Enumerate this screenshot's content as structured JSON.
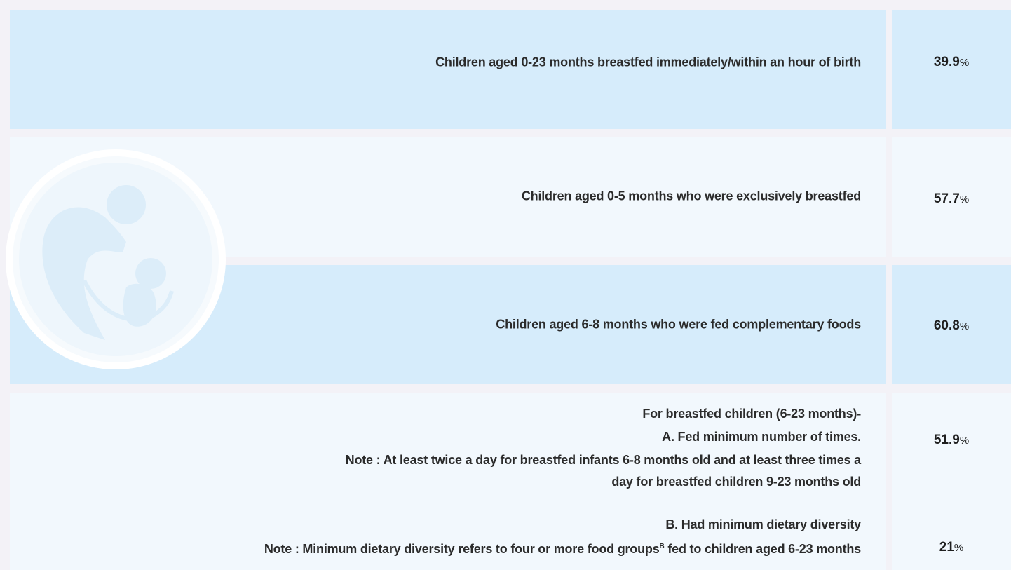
{
  "rows": [
    {
      "label": "Children aged 0-23 months breastfed immediately/within an hour of birth",
      "value": {
        "number": "39.9",
        "unit": "%"
      }
    },
    {
      "label": "Children aged 0-5 months who were exclusively breastfed",
      "value": {
        "number": "57.7",
        "unit": "%"
      }
    },
    {
      "label": "Children aged 6-8 months who were fed complementary foods",
      "value": {
        "number": "60.8",
        "unit": "%"
      }
    },
    {
      "lines": [
        "For breastfed children (6-23 months)-",
        "A. Fed minimum number of times.",
        "Note : At least twice a day  for breastfed infants 6-8 months old and at least three times a",
        "day for breastfed children 9-23 months old"
      ],
      "value": {
        "number": "51.9",
        "unit": "%"
      }
    },
    {
      "lines": [
        "B. Had minimum dietary diversity",
        {
          "before": "Note : Minimum dietary diversity refers to four or more food groups",
          "sup": "B",
          "after": " fed to children aged 6-23 months"
        }
      ],
      "value": {
        "number": "21",
        "unit": "%"
      }
    }
  ]
}
